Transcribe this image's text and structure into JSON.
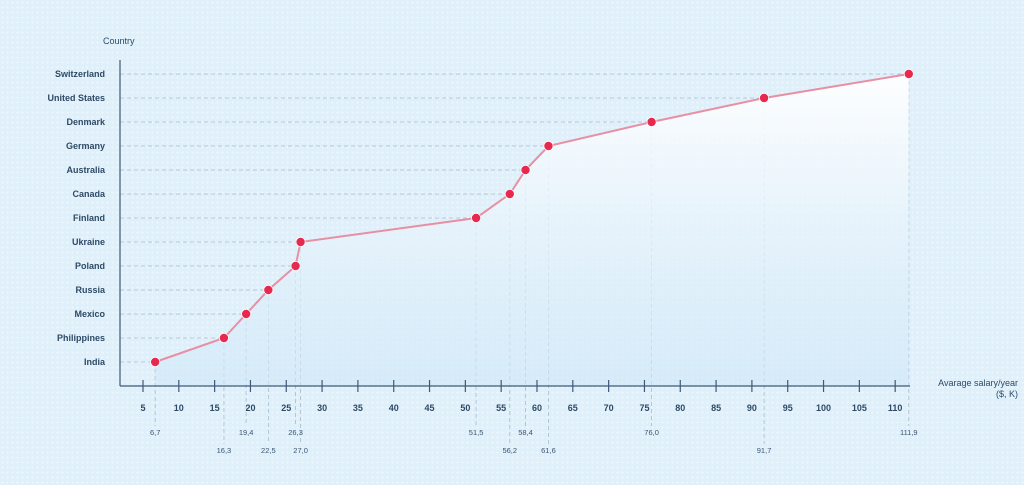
{
  "chart_data": {
    "type": "line",
    "ylabel": "Country",
    "xlabel": "Avarage salary/year",
    "xlabel_unit": "($, K)",
    "categories": [
      "India",
      "Philippines",
      "Mexico",
      "Russia",
      "Poland",
      "Ukraine",
      "Finland",
      "Canada",
      "Australia",
      "Germany",
      "Denmark",
      "United States",
      "Switzerland"
    ],
    "values": [
      6.7,
      16.3,
      19.4,
      22.5,
      26.3,
      27.0,
      51.5,
      56.2,
      58.4,
      61.6,
      76.0,
      91.7,
      111.9
    ],
    "value_labels": [
      "6,7",
      "16,3",
      "19,4",
      "22,5",
      "26,3",
      "27,0",
      "51,5",
      "56,2",
      "58,4",
      "61,6",
      "76,0",
      "91,7",
      "111,9"
    ],
    "x_ticks": [
      5,
      10,
      15,
      20,
      25,
      30,
      35,
      40,
      45,
      50,
      55,
      60,
      65,
      70,
      75,
      80,
      85,
      90,
      95,
      100,
      105,
      110
    ],
    "xlim": [
      2,
      112
    ],
    "grid": "dashed",
    "colors": {
      "line": "#e98fa3",
      "point": "#e8294f",
      "axis": "#3d5a78",
      "grid": "#a7bccd",
      "text": "#2e4a66",
      "fill_top": "#ffffff",
      "fill_bottom": "#cfe7f7"
    }
  }
}
